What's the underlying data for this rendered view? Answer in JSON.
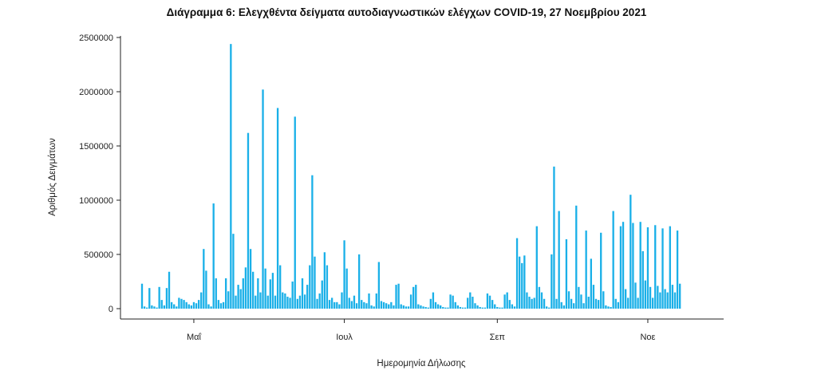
{
  "chart_data": {
    "type": "bar",
    "title": "Διάγραμμα 6: Ελεγχθέντα δείγματα αυτοδιαγνωστικών ελέγχων COVID-19, 27 Νοεμβρίου 2021",
    "xlabel": "Ημερομηνία Δήλωσης",
    "ylabel": "Αριθμός Δειγμάτων",
    "ylim": [
      0,
      2500000
    ],
    "yticks": [
      0,
      500000,
      1000000,
      1500000,
      2000000,
      2500000
    ],
    "ytick_labels": [
      "0",
      "500000",
      "1000000",
      "1500000",
      "2000000",
      "2500000"
    ],
    "xticks": [
      {
        "label": "Μαΐ",
        "date": "2021-05-01"
      },
      {
        "label": "Ιουλ",
        "date": "2021-07-01"
      },
      {
        "label": "Σεπ",
        "date": "2021-09-01"
      },
      {
        "label": "Νοε",
        "date": "2021-11-01"
      }
    ],
    "bar_color": "#1ab0e8",
    "grid": false,
    "series": [
      {
        "x_start": "2021-04-10",
        "x_end": "2021-11-23",
        "values": [
          230000,
          20000,
          10000,
          190000,
          30000,
          20000,
          10000,
          200000,
          80000,
          30000,
          190000,
          340000,
          60000,
          40000,
          20000,
          100000,
          90000,
          80000,
          60000,
          40000,
          30000,
          60000,
          50000,
          80000,
          150000,
          550000,
          350000,
          40000,
          20000,
          970000,
          280000,
          80000,
          50000,
          60000,
          280000,
          160000,
          2440000,
          690000,
          120000,
          220000,
          180000,
          280000,
          380000,
          1620000,
          550000,
          340000,
          120000,
          280000,
          150000,
          2020000,
          370000,
          120000,
          270000,
          330000,
          120000,
          1850000,
          400000,
          150000,
          140000,
          110000,
          100000,
          250000,
          1770000,
          90000,
          120000,
          280000,
          130000,
          220000,
          400000,
          1230000,
          480000,
          90000,
          140000,
          260000,
          520000,
          400000,
          80000,
          100000,
          60000,
          60000,
          40000,
          150000,
          630000,
          370000,
          100000,
          70000,
          120000,
          50000,
          500000,
          80000,
          60000,
          50000,
          140000,
          30000,
          20000,
          140000,
          430000,
          70000,
          60000,
          50000,
          40000,
          60000,
          30000,
          220000,
          230000,
          40000,
          30000,
          20000,
          20000,
          130000,
          200000,
          220000,
          40000,
          30000,
          20000,
          15000,
          10000,
          90000,
          150000,
          60000,
          40000,
          30000,
          15000,
          10000,
          10000,
          130000,
          120000,
          60000,
          30000,
          15000,
          10000,
          10000,
          100000,
          150000,
          110000,
          50000,
          30000,
          15000,
          10000,
          10000,
          140000,
          120000,
          80000,
          40000,
          15000,
          10000,
          10000,
          130000,
          150000,
          80000,
          40000,
          20000,
          650000,
          480000,
          420000,
          490000,
          150000,
          110000,
          90000,
          100000,
          760000,
          200000,
          150000,
          90000,
          20000,
          10000,
          500000,
          1310000,
          90000,
          900000,
          60000,
          30000,
          640000,
          160000,
          90000,
          50000,
          950000,
          200000,
          130000,
          50000,
          720000,
          110000,
          460000,
          220000,
          90000,
          80000,
          700000,
          160000,
          30000,
          20000,
          15000,
          900000,
          90000,
          60000,
          760000,
          800000,
          180000,
          100000,
          1050000,
          790000,
          240000,
          100000,
          800000,
          530000,
          260000,
          750000,
          200000,
          100000,
          770000,
          210000,
          150000,
          740000,
          180000,
          150000,
          760000,
          220000,
          150000,
          720000,
          230000
        ]
      }
    ]
  }
}
